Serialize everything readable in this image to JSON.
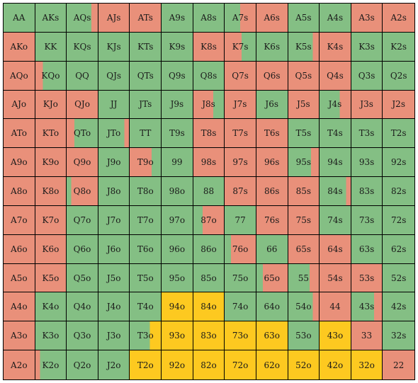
{
  "colors": {
    "green": "#84bf84",
    "red": "#e9907a",
    "yellow": "#fdc920"
  },
  "grid": {
    "rows": [
      [
        {
          "label": "AA",
          "fill": "green"
        },
        {
          "label": "AKs",
          "fill": "green"
        },
        {
          "label": "AQs",
          "fill": "green",
          "split": "red",
          "split_frac": 0.2
        },
        {
          "label": "AJs",
          "fill": "red"
        },
        {
          "label": "ATs",
          "fill": "red"
        },
        {
          "label": "A9s",
          "fill": "green"
        },
        {
          "label": "A8s",
          "fill": "green"
        },
        {
          "label": "A7s",
          "fill": "green",
          "split": "red",
          "split_frac": 0.5
        },
        {
          "label": "A6s",
          "fill": "red"
        },
        {
          "label": "A5s",
          "fill": "green"
        },
        {
          "label": "A4s",
          "fill": "green"
        },
        {
          "label": "A3s",
          "fill": "red"
        },
        {
          "label": "A2s",
          "fill": "red"
        }
      ],
      [
        {
          "label": "AKo",
          "fill": "red"
        },
        {
          "label": "KK",
          "fill": "green"
        },
        {
          "label": "KQs",
          "fill": "green"
        },
        {
          "label": "KJs",
          "fill": "green"
        },
        {
          "label": "KTs",
          "fill": "green"
        },
        {
          "label": "K9s",
          "fill": "green"
        },
        {
          "label": "K8s",
          "fill": "red"
        },
        {
          "label": "K7s",
          "fill": "red",
          "split": "green",
          "split_frac": 0.45
        },
        {
          "label": "K6s",
          "fill": "green"
        },
        {
          "label": "K5s",
          "fill": "green",
          "split": "red",
          "split_frac": 0.2
        },
        {
          "label": "K4s",
          "fill": "red"
        },
        {
          "label": "K3s",
          "fill": "green"
        },
        {
          "label": "K2s",
          "fill": "green"
        }
      ],
      [
        {
          "label": "AQo",
          "fill": "red"
        },
        {
          "label": "KQo",
          "fill": "red",
          "split": "green",
          "split_frac": 0.75
        },
        {
          "label": "QQ",
          "fill": "green"
        },
        {
          "label": "QJs",
          "fill": "green"
        },
        {
          "label": "QTs",
          "fill": "green"
        },
        {
          "label": "Q9s",
          "fill": "green"
        },
        {
          "label": "Q8s",
          "fill": "green"
        },
        {
          "label": "Q7s",
          "fill": "red"
        },
        {
          "label": "Q6s",
          "fill": "red"
        },
        {
          "label": "Q5s",
          "fill": "red"
        },
        {
          "label": "Q4s",
          "fill": "red"
        },
        {
          "label": "Q3s",
          "fill": "green"
        },
        {
          "label": "Q2s",
          "fill": "green"
        }
      ],
      [
        {
          "label": "AJo",
          "fill": "red"
        },
        {
          "label": "KJo",
          "fill": "red"
        },
        {
          "label": "QJo",
          "fill": "red"
        },
        {
          "label": "JJ",
          "fill": "green"
        },
        {
          "label": "JTs",
          "fill": "green"
        },
        {
          "label": "J9s",
          "fill": "green"
        },
        {
          "label": "J8s",
          "fill": "red",
          "split": "green",
          "split_frac": 0.35
        },
        {
          "label": "J7s",
          "fill": "red"
        },
        {
          "label": "J6s",
          "fill": "green"
        },
        {
          "label": "J5s",
          "fill": "red"
        },
        {
          "label": "J4s",
          "fill": "green",
          "split": "red",
          "split_frac": 0.35
        },
        {
          "label": "J3s",
          "fill": "red"
        },
        {
          "label": "J2s",
          "fill": "red"
        }
      ],
      [
        {
          "label": "ATo",
          "fill": "red"
        },
        {
          "label": "KTo",
          "fill": "red"
        },
        {
          "label": "QTo",
          "fill": "red",
          "split": "green",
          "split_frac": 0.75
        },
        {
          "label": "JTo",
          "fill": "green",
          "split": "red",
          "split_frac": 0.15
        },
        {
          "label": "TT",
          "fill": "green"
        },
        {
          "label": "T9s",
          "fill": "green"
        },
        {
          "label": "T8s",
          "fill": "red"
        },
        {
          "label": "T7s",
          "fill": "red"
        },
        {
          "label": "T6s",
          "fill": "red"
        },
        {
          "label": "T5s",
          "fill": "green"
        },
        {
          "label": "T4s",
          "fill": "green"
        },
        {
          "label": "T3s",
          "fill": "green"
        },
        {
          "label": "T2s",
          "fill": "green"
        }
      ],
      [
        {
          "label": "A9o",
          "fill": "red"
        },
        {
          "label": "K9o",
          "fill": "red"
        },
        {
          "label": "Q9o",
          "fill": "red"
        },
        {
          "label": "J9o",
          "fill": "green"
        },
        {
          "label": "T9o",
          "fill": "red",
          "split": "green",
          "split_frac": 0.3
        },
        {
          "label": "99",
          "fill": "green"
        },
        {
          "label": "98s",
          "fill": "red"
        },
        {
          "label": "97s",
          "fill": "red"
        },
        {
          "label": "96s",
          "fill": "red"
        },
        {
          "label": "95s",
          "fill": "green",
          "split": "red",
          "split_frac": 0.25
        },
        {
          "label": "94s",
          "fill": "green"
        },
        {
          "label": "93s",
          "fill": "green"
        },
        {
          "label": "92s",
          "fill": "green"
        }
      ],
      [
        {
          "label": "A8o",
          "fill": "red"
        },
        {
          "label": "K8o",
          "fill": "red"
        },
        {
          "label": "Q8o",
          "fill": "green",
          "split": "red",
          "split_frac": 0.85
        },
        {
          "label": "J8o",
          "fill": "green"
        },
        {
          "label": "T8o",
          "fill": "green"
        },
        {
          "label": "98o",
          "fill": "green"
        },
        {
          "label": "88",
          "fill": "green"
        },
        {
          "label": "87s",
          "fill": "red"
        },
        {
          "label": "86s",
          "fill": "red"
        },
        {
          "label": "85s",
          "fill": "red"
        },
        {
          "label": "84s",
          "fill": "green",
          "split": "red",
          "split_frac": 0.15
        },
        {
          "label": "83s",
          "fill": "green"
        },
        {
          "label": "82s",
          "fill": "green"
        }
      ],
      [
        {
          "label": "A7o",
          "fill": "red"
        },
        {
          "label": "K7o",
          "fill": "red"
        },
        {
          "label": "Q7o",
          "fill": "green"
        },
        {
          "label": "J7o",
          "fill": "green"
        },
        {
          "label": "T7o",
          "fill": "green"
        },
        {
          "label": "97o",
          "fill": "green"
        },
        {
          "label": "87o",
          "fill": "green",
          "split": "red",
          "split_frac": 0.7
        },
        {
          "label": "77",
          "fill": "green"
        },
        {
          "label": "76s",
          "fill": "red"
        },
        {
          "label": "75s",
          "fill": "red"
        },
        {
          "label": "74s",
          "fill": "green"
        },
        {
          "label": "73s",
          "fill": "green"
        },
        {
          "label": "72s",
          "fill": "green"
        }
      ],
      [
        {
          "label": "A6o",
          "fill": "red"
        },
        {
          "label": "K6o",
          "fill": "red"
        },
        {
          "label": "Q6o",
          "fill": "green"
        },
        {
          "label": "J6o",
          "fill": "green"
        },
        {
          "label": "T6o",
          "fill": "green"
        },
        {
          "label": "96o",
          "fill": "green"
        },
        {
          "label": "86o",
          "fill": "green"
        },
        {
          "label": "76o",
          "fill": "green",
          "split": "red",
          "split_frac": 0.8
        },
        {
          "label": "66",
          "fill": "green"
        },
        {
          "label": "65s",
          "fill": "red"
        },
        {
          "label": "64s",
          "fill": "red"
        },
        {
          "label": "63s",
          "fill": "green"
        },
        {
          "label": "62s",
          "fill": "green"
        }
      ],
      [
        {
          "label": "A5o",
          "fill": "red"
        },
        {
          "label": "K5o",
          "fill": "red"
        },
        {
          "label": "Q5o",
          "fill": "green"
        },
        {
          "label": "J5o",
          "fill": "green"
        },
        {
          "label": "T5o",
          "fill": "green"
        },
        {
          "label": "95o",
          "fill": "green"
        },
        {
          "label": "85o",
          "fill": "green"
        },
        {
          "label": "75o",
          "fill": "green"
        },
        {
          "label": "65o",
          "fill": "green",
          "split": "red",
          "split_frac": 0.8
        },
        {
          "label": "55",
          "fill": "green",
          "split": "red",
          "split_frac": 0.3
        },
        {
          "label": "54s",
          "fill": "red"
        },
        {
          "label": "53s",
          "fill": "red"
        },
        {
          "label": "52s",
          "fill": "green"
        }
      ],
      [
        {
          "label": "A4o",
          "fill": "red"
        },
        {
          "label": "K4o",
          "fill": "green"
        },
        {
          "label": "Q4o",
          "fill": "green"
        },
        {
          "label": "J4o",
          "fill": "green"
        },
        {
          "label": "T4o",
          "fill": "green"
        },
        {
          "label": "94o",
          "fill": "yellow"
        },
        {
          "label": "84o",
          "fill": "yellow"
        },
        {
          "label": "74o",
          "fill": "green"
        },
        {
          "label": "64o",
          "fill": "green"
        },
        {
          "label": "54o",
          "fill": "green",
          "split": "red",
          "split_frac": 0.2
        },
        {
          "label": "44",
          "fill": "red"
        },
        {
          "label": "43s",
          "fill": "green",
          "split": "red",
          "split_frac": 0.25
        },
        {
          "label": "42s",
          "fill": "green"
        }
      ],
      [
        {
          "label": "A3o",
          "fill": "red"
        },
        {
          "label": "K3o",
          "fill": "green"
        },
        {
          "label": "Q3o",
          "fill": "green"
        },
        {
          "label": "J3o",
          "fill": "green"
        },
        {
          "label": "T3o",
          "fill": "green",
          "split": "yellow",
          "split_frac": 0.35
        },
        {
          "label": "93o",
          "fill": "yellow"
        },
        {
          "label": "83o",
          "fill": "yellow"
        },
        {
          "label": "73o",
          "fill": "yellow"
        },
        {
          "label": "63o",
          "fill": "yellow"
        },
        {
          "label": "53o",
          "fill": "green"
        },
        {
          "label": "43o",
          "fill": "yellow"
        },
        {
          "label": "33",
          "fill": "red"
        },
        {
          "label": "32s",
          "fill": "green"
        }
      ],
      [
        {
          "label": "A2o",
          "fill": "red"
        },
        {
          "label": "K2o",
          "fill": "red",
          "split": "green",
          "split_frac": 0.85
        },
        {
          "label": "Q2o",
          "fill": "green"
        },
        {
          "label": "J2o",
          "fill": "green"
        },
        {
          "label": "T2o",
          "fill": "yellow"
        },
        {
          "label": "92o",
          "fill": "yellow"
        },
        {
          "label": "82o",
          "fill": "yellow"
        },
        {
          "label": "72o",
          "fill": "yellow"
        },
        {
          "label": "62o",
          "fill": "yellow"
        },
        {
          "label": "52o",
          "fill": "yellow"
        },
        {
          "label": "42o",
          "fill": "yellow"
        },
        {
          "label": "32o",
          "fill": "yellow"
        },
        {
          "label": "22",
          "fill": "red"
        }
      ]
    ]
  }
}
